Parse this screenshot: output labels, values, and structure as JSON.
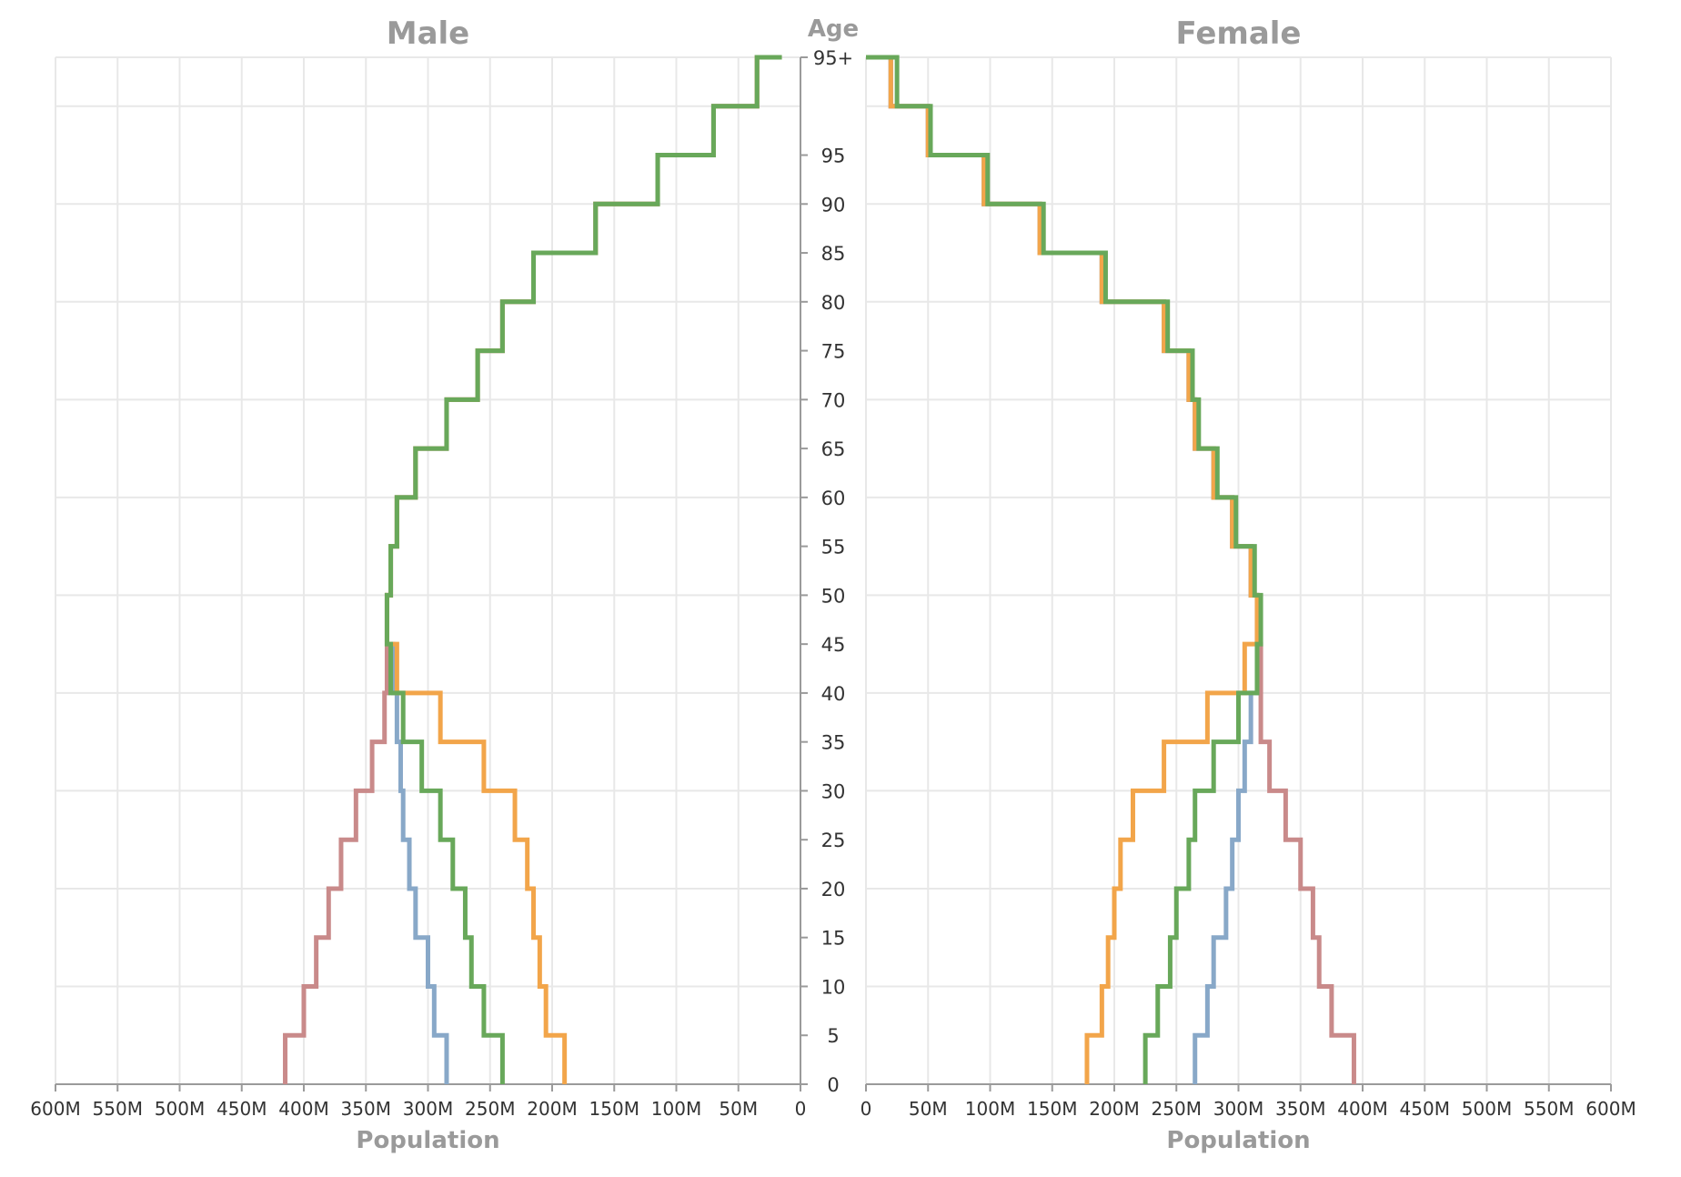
{
  "chart_data": {
    "type": "step-line",
    "center_axis": {
      "title": "Age"
    },
    "y": {
      "bins": [
        "0",
        "5",
        "10",
        "15",
        "20",
        "25",
        "30",
        "35",
        "40",
        "45",
        "50",
        "55",
        "60",
        "65",
        "70",
        "75",
        "80",
        "85",
        "90",
        "95",
        "95+"
      ],
      "tick_labels": [
        "0",
        "5",
        "10",
        "15",
        "20",
        "25",
        "30",
        "35",
        "40",
        "45",
        "50",
        "55",
        "60",
        "65",
        "70",
        "75",
        "80",
        "85",
        "90",
        "95",
        "95+"
      ]
    },
    "panels": [
      {
        "title": "Male",
        "xlabel": "Population",
        "xlim": [
          0,
          600
        ],
        "x_tick_labels": [
          "600M",
          "550M",
          "500M",
          "450M",
          "400M",
          "350M",
          "300M",
          "250M",
          "200M",
          "150M",
          "100M",
          "50M",
          "0"
        ],
        "x_tick_values": [
          600,
          550,
          500,
          450,
          400,
          350,
          300,
          250,
          200,
          150,
          100,
          50,
          0
        ]
      },
      {
        "title": "Female",
        "xlabel": "Population",
        "xlim": [
          0,
          600
        ],
        "x_tick_labels": [
          "0",
          "50M",
          "100M",
          "150M",
          "200M",
          "250M",
          "300M",
          "350M",
          "400M",
          "450M",
          "500M",
          "550M",
          "600M"
        ],
        "x_tick_values": [
          0,
          50,
          100,
          150,
          200,
          250,
          300,
          350,
          400,
          450,
          500,
          550,
          600
        ]
      }
    ],
    "series": [
      {
        "color": "#c98a8a",
        "male": [
          415,
          400,
          390,
          380,
          370,
          358,
          345,
          335,
          333,
          333,
          330,
          325,
          310,
          285,
          260,
          240,
          215,
          165,
          115,
          70,
          35,
          15
        ],
        "female": [
          393,
          375,
          365,
          360,
          350,
          338,
          325,
          318,
          318,
          315,
          310,
          295,
          280,
          265,
          260,
          240,
          190,
          140,
          95,
          50,
          20,
          0
        ]
      },
      {
        "color": "#88a8c8",
        "male": [
          285,
          295,
          300,
          310,
          315,
          320,
          322,
          325,
          328,
          333,
          330,
          325,
          310,
          285,
          260,
          240,
          215,
          165,
          115,
          70,
          35,
          15
        ],
        "female": [
          265,
          275,
          280,
          290,
          295,
          300,
          305,
          310,
          315,
          315,
          310,
          295,
          280,
          265,
          260,
          240,
          190,
          140,
          95,
          50,
          20,
          0
        ]
      },
      {
        "color": "#f2a54a",
        "male": [
          190,
          205,
          210,
          215,
          220,
          230,
          255,
          290,
          325,
          333,
          330,
          325,
          310,
          285,
          260,
          240,
          215,
          165,
          115,
          70,
          35,
          15
        ],
        "female": [
          178,
          190,
          195,
          200,
          205,
          215,
          240,
          275,
          305,
          315,
          310,
          295,
          280,
          265,
          260,
          240,
          190,
          140,
          95,
          50,
          20,
          0
        ]
      },
      {
        "color": "#68a85a",
        "male": [
          240,
          255,
          265,
          270,
          280,
          290,
          305,
          320,
          330,
          333,
          330,
          325,
          310,
          285,
          260,
          240,
          215,
          165,
          115,
          70,
          35,
          15
        ],
        "female": [
          225,
          235,
          245,
          250,
          260,
          265,
          280,
          300,
          315,
          318,
          313,
          298,
          283,
          268,
          263,
          243,
          193,
          143,
          98,
          52,
          25,
          0
        ]
      }
    ]
  }
}
